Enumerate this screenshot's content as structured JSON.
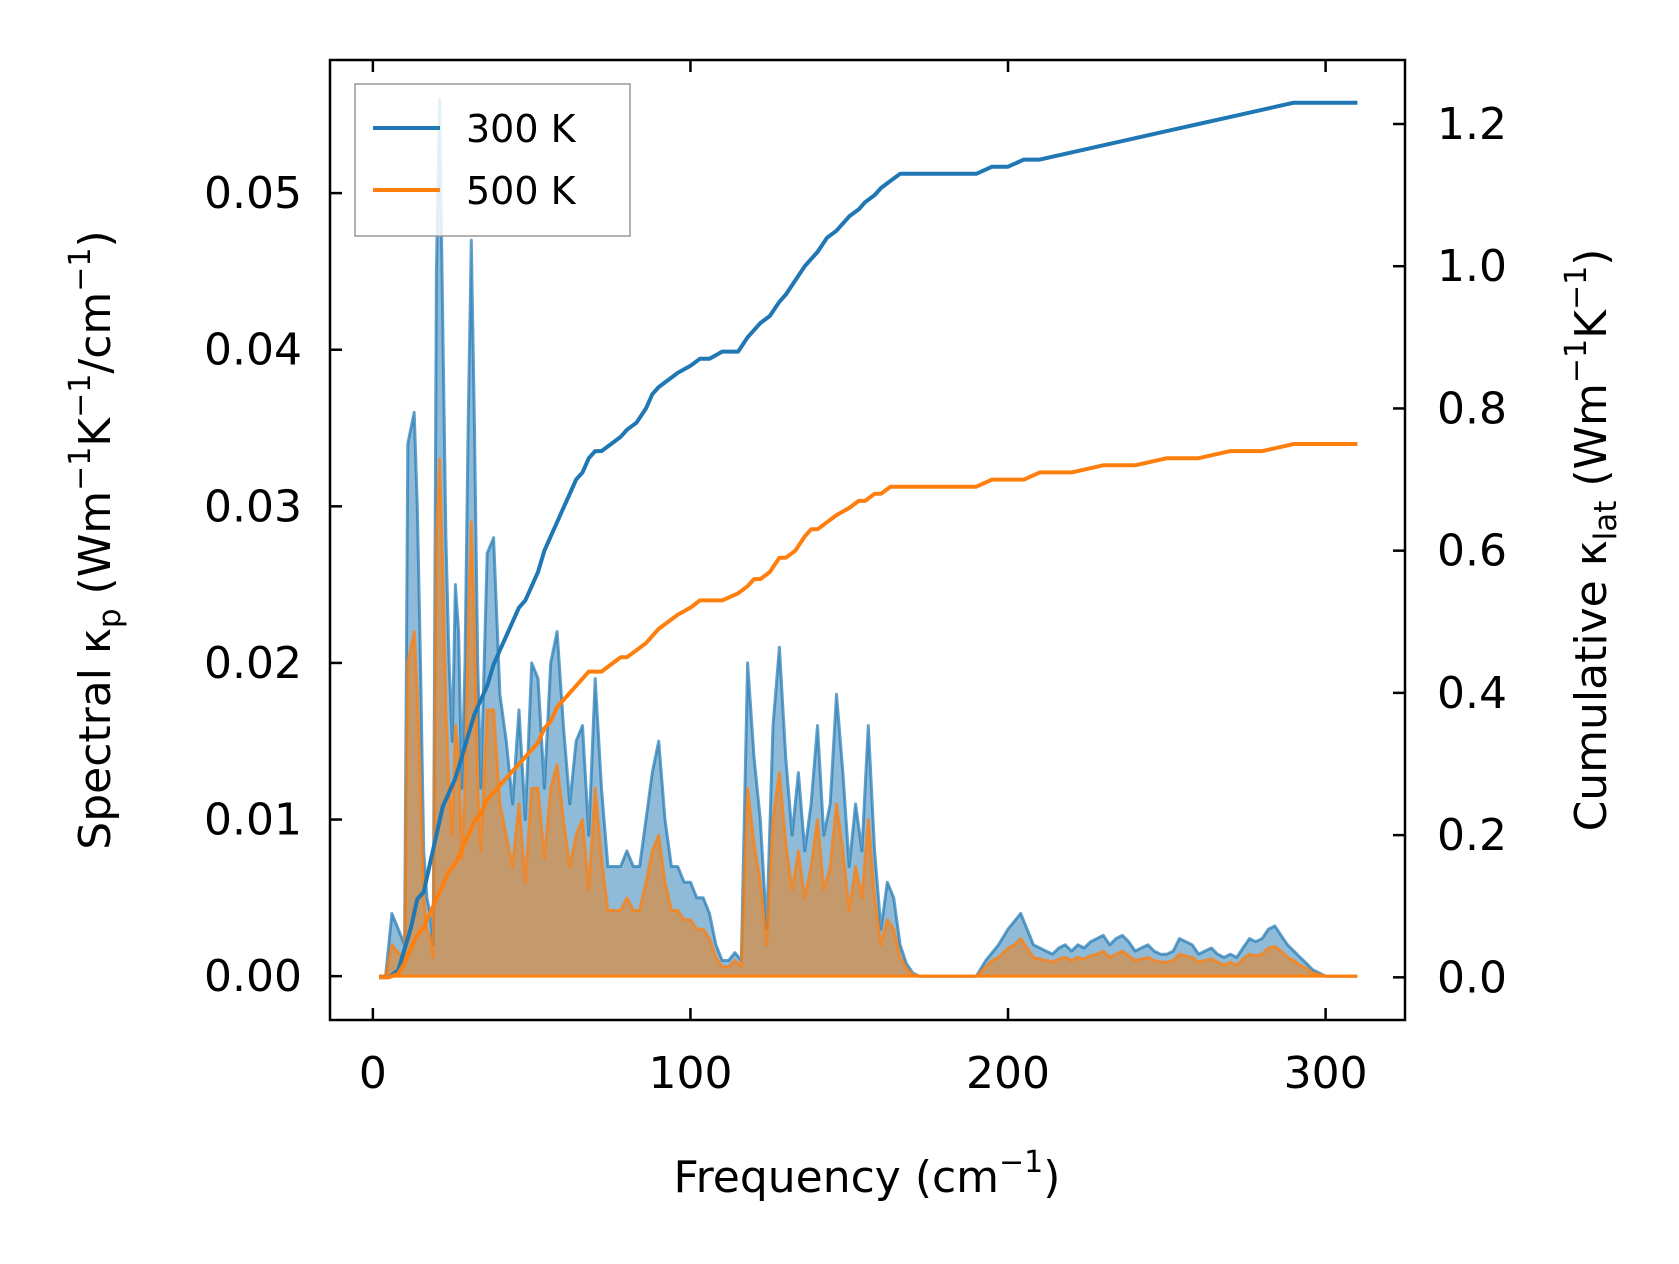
{
  "chart_data": {
    "type": "line",
    "x_axis": {
      "label_main": "Frequency (cm",
      "label_sup": "−1",
      "label_end": ")",
      "lim": [
        -13.5,
        325
      ],
      "ticks": [
        0,
        100,
        200,
        300
      ],
      "tick_labels": [
        "0",
        "100",
        "200",
        "300"
      ]
    },
    "y_left": {
      "label_prefix": "Spectral κ",
      "label_sub": "p",
      "label_units_1": " (Wm",
      "label_sup_1": "−1",
      "label_units_2": "K",
      "label_sup_2": "−1",
      "label_units_3": "/cm",
      "label_sup_3": "−1",
      "label_end": ")",
      "lim": [
        -0.0028,
        0.0585
      ],
      "ticks": [
        0.0,
        0.01,
        0.02,
        0.03,
        0.04,
        0.05
      ],
      "tick_labels": [
        "0.00",
        "0.01",
        "0.02",
        "0.03",
        "0.04",
        "0.05"
      ]
    },
    "y_right": {
      "label_prefix": "Cumulative κ",
      "label_sub": "lat",
      "label_units_1": " (Wm",
      "label_sup_1": "−1",
      "label_units_2": "K",
      "label_sup_2": "−1",
      "label_end": ")",
      "lim": [
        -0.06,
        1.29
      ],
      "ticks": [
        0.0,
        0.2,
        0.4,
        0.6,
        0.8,
        1.0,
        1.2
      ],
      "tick_labels": [
        "0.0",
        "0.2",
        "0.4",
        "0.6",
        "0.8",
        "1.0",
        "1.2"
      ]
    },
    "legend": {
      "position": "upper-left",
      "entries": [
        "300 K",
        "500 K"
      ]
    },
    "colors": {
      "series_300": "#1f77b4",
      "series_500": "#ff7f0e",
      "fill_500": "#c49a6c"
    },
    "spectral": {
      "x": [
        2,
        4,
        6,
        8,
        10,
        11,
        12,
        13,
        14,
        15,
        16,
        17,
        18,
        19,
        20,
        21,
        22,
        23,
        24,
        25,
        26,
        27,
        28,
        29,
        30,
        31,
        32,
        33,
        34,
        36,
        38,
        40,
        42,
        44,
        46,
        48,
        50,
        52,
        54,
        56,
        58,
        60,
        62,
        64,
        66,
        68,
        70,
        72,
        74,
        76,
        78,
        80,
        82,
        84,
        86,
        88,
        90,
        92,
        94,
        96,
        98,
        100,
        102,
        104,
        106,
        108,
        110,
        112,
        114,
        116,
        118,
        120,
        122,
        124,
        126,
        128,
        130,
        132,
        134,
        136,
        138,
        140,
        142,
        144,
        146,
        148,
        150,
        152,
        154,
        156,
        158,
        160,
        162,
        164,
        166,
        168,
        170,
        172,
        174,
        176,
        180,
        185,
        190,
        193,
        195,
        197,
        200,
        202,
        204,
        206,
        208,
        210,
        212,
        214,
        216,
        218,
        220,
        222,
        224,
        226,
        228,
        230,
        232,
        234,
        236,
        238,
        240,
        242,
        244,
        246,
        248,
        250,
        252,
        254,
        256,
        258,
        260,
        262,
        264,
        266,
        268,
        270,
        272,
        274,
        276,
        278,
        280,
        282,
        284,
        286,
        288,
        290,
        292,
        294,
        296,
        298,
        300,
        305,
        310
      ],
      "k300": [
        0,
        0,
        0.004,
        0.003,
        0.002,
        0.034,
        0.035,
        0.036,
        0.03,
        0.02,
        0.008,
        0.005,
        0.004,
        0.002,
        0.045,
        0.056,
        0.042,
        0.028,
        0.02,
        0.015,
        0.025,
        0.022,
        0.012,
        0.02,
        0.035,
        0.047,
        0.035,
        0.02,
        0.012,
        0.027,
        0.028,
        0.018,
        0.015,
        0.011,
        0.017,
        0.01,
        0.02,
        0.019,
        0.012,
        0.02,
        0.022,
        0.016,
        0.011,
        0.015,
        0.016,
        0.009,
        0.019,
        0.012,
        0.007,
        0.007,
        0.007,
        0.008,
        0.007,
        0.007,
        0.01,
        0.013,
        0.015,
        0.01,
        0.007,
        0.007,
        0.006,
        0.006,
        0.005,
        0.005,
        0.004,
        0.002,
        0.001,
        0.001,
        0.0015,
        0.001,
        0.02,
        0.014,
        0.01,
        0.003,
        0.016,
        0.021,
        0.014,
        0.009,
        0.013,
        0.008,
        0.011,
        0.016,
        0.009,
        0.011,
        0.018,
        0.013,
        0.007,
        0.011,
        0.008,
        0.016,
        0.008,
        0.003,
        0.006,
        0.005,
        0.002,
        0.0008,
        0.0002,
        0,
        0,
        0,
        0,
        0,
        0,
        0.001,
        0.0015,
        0.002,
        0.003,
        0.0035,
        0.004,
        0.003,
        0.002,
        0.0018,
        0.0016,
        0.0014,
        0.0018,
        0.002,
        0.0016,
        0.002,
        0.0018,
        0.0022,
        0.0024,
        0.0026,
        0.002,
        0.0024,
        0.0026,
        0.0022,
        0.0016,
        0.0018,
        0.002,
        0.0016,
        0.0014,
        0.0014,
        0.0016,
        0.0024,
        0.0022,
        0.002,
        0.0014,
        0.0016,
        0.0018,
        0.0014,
        0.0012,
        0.0014,
        0.0012,
        0.0018,
        0.0024,
        0.0022,
        0.0024,
        0.003,
        0.0032,
        0.0026,
        0.002,
        0.0016,
        0.0012,
        0.0008,
        0.0004,
        0.0002,
        0,
        0,
        0,
        0,
        0
      ],
      "k500": [
        0,
        0,
        0.002,
        0.0015,
        0.001,
        0.02,
        0.021,
        0.022,
        0.018,
        0.012,
        0.005,
        0.003,
        0.0025,
        0.0012,
        0.028,
        0.033,
        0.026,
        0.017,
        0.012,
        0.009,
        0.016,
        0.014,
        0.0075,
        0.012,
        0.022,
        0.029,
        0.022,
        0.012,
        0.008,
        0.017,
        0.017,
        0.011,
        0.009,
        0.007,
        0.011,
        0.006,
        0.012,
        0.012,
        0.0075,
        0.012,
        0.0135,
        0.01,
        0.007,
        0.009,
        0.01,
        0.0055,
        0.012,
        0.0075,
        0.0042,
        0.0042,
        0.0042,
        0.005,
        0.0042,
        0.0042,
        0.006,
        0.008,
        0.009,
        0.006,
        0.0042,
        0.0042,
        0.0036,
        0.0036,
        0.003,
        0.003,
        0.0024,
        0.0012,
        0.0006,
        0.0006,
        0.001,
        0.0006,
        0.012,
        0.0085,
        0.006,
        0.002,
        0.01,
        0.013,
        0.0085,
        0.0055,
        0.008,
        0.005,
        0.007,
        0.01,
        0.0055,
        0.007,
        0.011,
        0.008,
        0.0042,
        0.007,
        0.005,
        0.01,
        0.005,
        0.002,
        0.0036,
        0.003,
        0.0012,
        0.0005,
        0.0001,
        0,
        0,
        0,
        0,
        0,
        0,
        0.0006,
        0.001,
        0.0012,
        0.0018,
        0.002,
        0.0024,
        0.0018,
        0.0012,
        0.0011,
        0.001,
        0.0009,
        0.0011,
        0.0012,
        0.001,
        0.0012,
        0.0011,
        0.0013,
        0.0014,
        0.0016,
        0.0012,
        0.0014,
        0.0016,
        0.0013,
        0.001,
        0.0011,
        0.0012,
        0.001,
        0.0009,
        0.0009,
        0.001,
        0.0014,
        0.0013,
        0.0012,
        0.0009,
        0.001,
        0.0011,
        0.0009,
        0.0007,
        0.0009,
        0.0007,
        0.0011,
        0.0014,
        0.0013,
        0.0014,
        0.0018,
        0.0019,
        0.0016,
        0.0012,
        0.001,
        0.0007,
        0.0005,
        0.0002,
        0.0001,
        0,
        0,
        0,
        0,
        0
      ]
    },
    "cumulative": {
      "x": [
        2,
        5,
        8,
        10,
        12,
        14,
        16,
        18,
        20,
        22,
        24,
        26,
        28,
        30,
        32,
        34,
        36,
        38,
        40,
        42,
        44,
        46,
        48,
        50,
        52,
        54,
        56,
        58,
        60,
        62,
        64,
        66,
        68,
        70,
        72,
        75,
        78,
        80,
        83,
        86,
        88,
        90,
        93,
        96,
        100,
        103,
        106,
        110,
        115,
        118,
        120,
        122,
        125,
        128,
        130,
        133,
        136,
        138,
        140,
        143,
        146,
        150,
        153,
        155,
        158,
        160,
        163,
        166,
        170,
        175,
        180,
        190,
        195,
        200,
        205,
        210,
        220,
        230,
        240,
        250,
        260,
        270,
        280,
        285,
        290,
        295,
        300,
        310
      ],
      "c300": [
        0,
        0,
        0.01,
        0.04,
        0.07,
        0.11,
        0.12,
        0.16,
        0.2,
        0.24,
        0.26,
        0.28,
        0.31,
        0.34,
        0.37,
        0.39,
        0.41,
        0.44,
        0.46,
        0.48,
        0.5,
        0.52,
        0.53,
        0.55,
        0.57,
        0.6,
        0.62,
        0.64,
        0.66,
        0.68,
        0.7,
        0.71,
        0.73,
        0.74,
        0.74,
        0.75,
        0.76,
        0.77,
        0.78,
        0.8,
        0.82,
        0.83,
        0.84,
        0.85,
        0.86,
        0.87,
        0.87,
        0.88,
        0.88,
        0.9,
        0.91,
        0.92,
        0.93,
        0.95,
        0.96,
        0.98,
        1.0,
        1.01,
        1.02,
        1.04,
        1.05,
        1.07,
        1.08,
        1.09,
        1.1,
        1.11,
        1.12,
        1.13,
        1.13,
        1.13,
        1.13,
        1.13,
        1.14,
        1.14,
        1.15,
        1.15,
        1.16,
        1.17,
        1.18,
        1.19,
        1.2,
        1.21,
        1.22,
        1.225,
        1.23,
        1.23,
        1.23,
        1.23
      ],
      "c500": [
        0,
        0,
        0.005,
        0.02,
        0.04,
        0.06,
        0.07,
        0.09,
        0.11,
        0.13,
        0.15,
        0.16,
        0.18,
        0.2,
        0.22,
        0.23,
        0.25,
        0.26,
        0.27,
        0.28,
        0.29,
        0.3,
        0.31,
        0.32,
        0.33,
        0.35,
        0.36,
        0.38,
        0.39,
        0.4,
        0.41,
        0.42,
        0.43,
        0.43,
        0.43,
        0.44,
        0.45,
        0.45,
        0.46,
        0.47,
        0.48,
        0.49,
        0.5,
        0.51,
        0.52,
        0.53,
        0.53,
        0.53,
        0.54,
        0.55,
        0.56,
        0.56,
        0.57,
        0.59,
        0.59,
        0.6,
        0.62,
        0.63,
        0.63,
        0.64,
        0.65,
        0.66,
        0.67,
        0.67,
        0.68,
        0.68,
        0.69,
        0.69,
        0.69,
        0.69,
        0.69,
        0.69,
        0.7,
        0.7,
        0.7,
        0.71,
        0.71,
        0.72,
        0.72,
        0.73,
        0.73,
        0.74,
        0.74,
        0.745,
        0.75,
        0.75,
        0.75,
        0.75
      ]
    }
  }
}
